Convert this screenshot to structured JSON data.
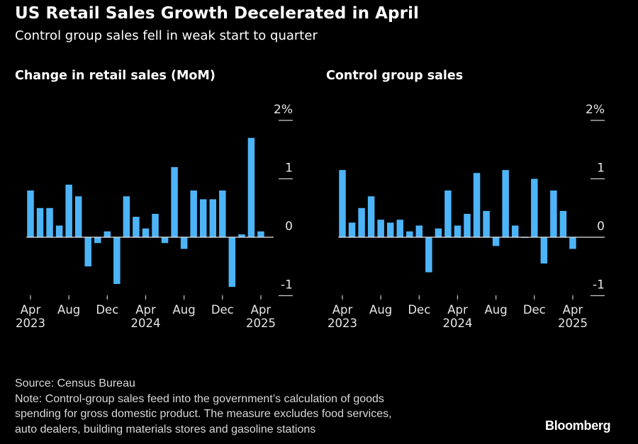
{
  "header": {
    "title": "US Retail Sales Growth Decelerated in April",
    "subtitle": "Control group sales fell in weak start to quarter"
  },
  "colors": {
    "bar": "#4db4f7",
    "background": "#000000",
    "axis": "#cccccc",
    "text": "#ffffff"
  },
  "chart_data": [
    {
      "type": "bar",
      "title": "Change in retail sales (MoM)",
      "xlabel": "",
      "ylabel": "",
      "y_unit": "%",
      "ylim": [
        -1.1,
        2.1
      ],
      "yticks": [
        2,
        1,
        0,
        -1
      ],
      "ytick_labels": [
        "2%",
        "1",
        "0",
        "-1"
      ],
      "y_axis_side": "right",
      "grid": false,
      "categories": [
        "2023-04",
        "2023-05",
        "2023-06",
        "2023-07",
        "2023-08",
        "2023-09",
        "2023-10",
        "2023-11",
        "2023-12",
        "2024-01",
        "2024-02",
        "2024-03",
        "2024-04",
        "2024-05",
        "2024-06",
        "2024-07",
        "2024-08",
        "2024-09",
        "2024-10",
        "2024-11",
        "2024-12",
        "2025-01",
        "2025-02",
        "2025-03",
        "2025-04"
      ],
      "xtick_labels": [
        {
          "category": "2023-04",
          "month": "Apr",
          "year": "2023"
        },
        {
          "category": "2023-08",
          "month": "Aug",
          "year": ""
        },
        {
          "category": "2023-12",
          "month": "Dec",
          "year": ""
        },
        {
          "category": "2024-04",
          "month": "Apr",
          "year": "2024"
        },
        {
          "category": "2024-08",
          "month": "Aug",
          "year": ""
        },
        {
          "category": "2024-12",
          "month": "Dec",
          "year": ""
        },
        {
          "category": "2025-04",
          "month": "Apr",
          "year": "2025"
        }
      ],
      "values": [
        0.8,
        0.5,
        0.5,
        0.2,
        0.9,
        0.7,
        -0.5,
        -0.1,
        0.1,
        -0.8,
        0.7,
        0.35,
        0.15,
        0.4,
        -0.1,
        1.2,
        -0.2,
        0.8,
        0.65,
        0.65,
        0.8,
        -0.85,
        0.05,
        1.7,
        0.1
      ]
    },
    {
      "type": "bar",
      "title": "Control group sales",
      "xlabel": "",
      "ylabel": "",
      "y_unit": "%",
      "ylim": [
        -1.1,
        2.1
      ],
      "yticks": [
        2,
        1,
        0,
        -1
      ],
      "ytick_labels": [
        "2%",
        "1",
        "0",
        "-1"
      ],
      "y_axis_side": "right",
      "grid": false,
      "categories": [
        "2023-04",
        "2023-05",
        "2023-06",
        "2023-07",
        "2023-08",
        "2023-09",
        "2023-10",
        "2023-11",
        "2023-12",
        "2024-01",
        "2024-02",
        "2024-03",
        "2024-04",
        "2024-05",
        "2024-06",
        "2024-07",
        "2024-08",
        "2024-09",
        "2024-10",
        "2024-11",
        "2024-12",
        "2025-01",
        "2025-02",
        "2025-03",
        "2025-04"
      ],
      "xtick_labels": [
        {
          "category": "2023-04",
          "month": "Apr",
          "year": "2023"
        },
        {
          "category": "2023-08",
          "month": "Aug",
          "year": ""
        },
        {
          "category": "2023-12",
          "month": "Dec",
          "year": ""
        },
        {
          "category": "2024-04",
          "month": "Apr",
          "year": "2024"
        },
        {
          "category": "2024-08",
          "month": "Aug",
          "year": ""
        },
        {
          "category": "2024-12",
          "month": "Dec",
          "year": ""
        },
        {
          "category": "2025-04",
          "month": "Apr",
          "year": "2025"
        }
      ],
      "values": [
        1.15,
        0.25,
        0.5,
        0.7,
        0.3,
        0.25,
        0.3,
        0.1,
        0.2,
        -0.6,
        0.15,
        0.8,
        0.2,
        0.4,
        1.1,
        0.45,
        -0.15,
        1.15,
        0.2,
        0.0,
        1.0,
        -0.45,
        0.8,
        0.45,
        -0.2
      ]
    }
  ],
  "footer": {
    "source": "Source: Census Bureau",
    "note_lines": [
      "Note: Control-group sales feed into the government’s calculation of goods",
      "spending for gross domestic product. The measure excludes food services,",
      "auto dealers, building materials stores and gasoline stations"
    ],
    "brand": "Bloomberg"
  }
}
